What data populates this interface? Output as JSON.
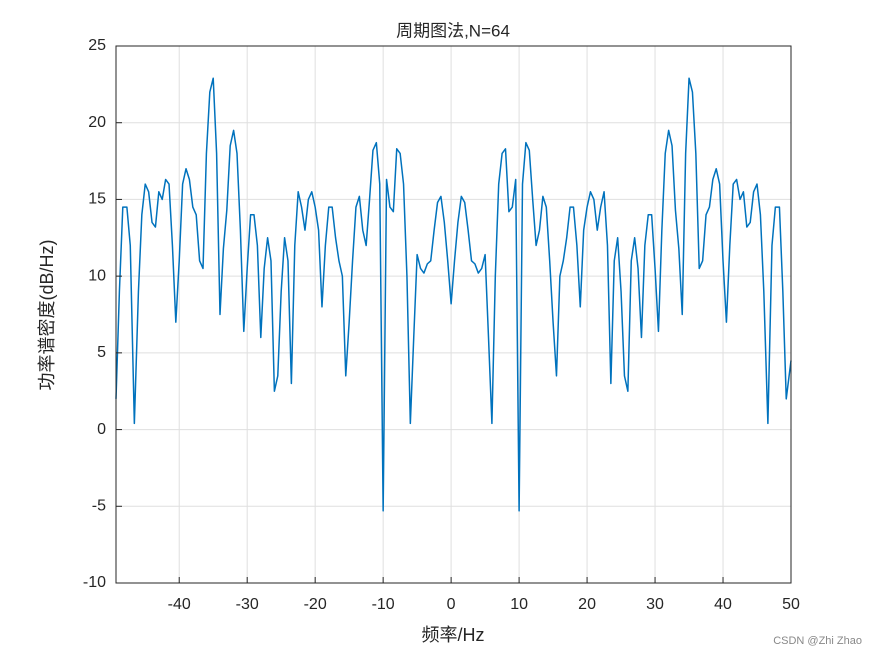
{
  "chart_data": {
    "type": "line",
    "title": "周期图法,N=64",
    "x_label": "频率/Hz",
    "y_label": "功率谱密度(dB/Hz)",
    "watermark": "CSDN @Zhi Zhao",
    "color": "#0072bd",
    "grid": true,
    "xlim": [
      -49.3,
      50
    ],
    "ylim": [
      -10,
      25
    ],
    "xticks": [
      -40,
      -30,
      -20,
      -10,
      0,
      10,
      20,
      30,
      40,
      50
    ],
    "yticks": [
      -10,
      -5,
      0,
      5,
      10,
      15,
      20,
      25
    ],
    "x": [
      -49.3,
      -48.8,
      -48.3,
      -47.7,
      -47.2,
      -46.6,
      -46,
      -45.5,
      -45,
      -44.5,
      -44,
      -43.5,
      -43,
      -42.5,
      -42,
      -41.5,
      -41,
      -40.5,
      -40,
      -39.5,
      -39,
      -38.5,
      -38,
      -37.5,
      -37,
      -36.5,
      -36,
      -35.5,
      -35,
      -34.5,
      -34,
      -33.5,
      -33,
      -32.5,
      -32,
      -31.5,
      -31,
      -30.5,
      -30,
      -29.5,
      -29,
      -28.5,
      -28,
      -27.5,
      -27,
      -26.5,
      -26,
      -25.5,
      -25,
      -24.5,
      -24,
      -23.5,
      -23,
      -22.5,
      -22,
      -21.5,
      -21,
      -20.5,
      -20,
      -19.5,
      -19,
      -18.5,
      -18,
      -17.5,
      -17,
      -16.5,
      -16,
      -15.5,
      -15,
      -14.5,
      -14,
      -13.5,
      -13,
      -12.5,
      -12,
      -11.5,
      -11,
      -10.5,
      -10,
      -9.5,
      -9,
      -8.5,
      -8,
      -7.5,
      -7,
      -6.5,
      -6,
      -5.5,
      -5,
      -4.5,
      -4,
      -3.5,
      -3,
      -2.5,
      -2,
      -1.5,
      -1,
      -0.5,
      0,
      0.5,
      1,
      1.5,
      2,
      2.5,
      3,
      3.5,
      4,
      4.5,
      5,
      5.5,
      6,
      6.5,
      7,
      7.5,
      8,
      8.5,
      9,
      9.5,
      10,
      10.5,
      11,
      11.5,
      12,
      12.5,
      13,
      13.5,
      14,
      14.5,
      15,
      15.5,
      16,
      16.5,
      17,
      17.5,
      18,
      18.5,
      19,
      19.5,
      20,
      20.5,
      21,
      21.5,
      22,
      22.5,
      23,
      23.5,
      24,
      24.5,
      25,
      25.5,
      26,
      26.5,
      27,
      27.5,
      28,
      28.5,
      29,
      29.5,
      30,
      30.5,
      31,
      31.5,
      32,
      32.5,
      33,
      33.5,
      34,
      34.5,
      35,
      35.5,
      36,
      36.5,
      37,
      37.5,
      38,
      38.5,
      39,
      39.5,
      40,
      40.5,
      41,
      41.5,
      42,
      42.5,
      43,
      43.5,
      44,
      44.5,
      45,
      45.5,
      46,
      46.6,
      47.2,
      47.7,
      48.3,
      48.8,
      49.3,
      50
    ],
    "values": [
      2,
      9,
      14.5,
      14.5,
      12,
      0.4,
      9,
      14,
      16,
      15.5,
      13.5,
      13.2,
      15.5,
      15,
      16.3,
      16,
      12,
      7,
      11,
      16,
      17,
      16.3,
      14.5,
      14,
      11,
      10.5,
      18,
      22,
      22.9,
      18,
      7.5,
      11.8,
      14.3,
      18.5,
      19.5,
      18,
      13,
      6.4,
      10.5,
      14,
      14,
      12,
      6,
      10.5,
      12.5,
      11,
      2.5,
      3.5,
      9,
      12.5,
      11,
      3,
      12,
      15.5,
      14.5,
      13,
      15,
      15.5,
      14.5,
      13,
      8,
      12,
      14.5,
      14.5,
      12.5,
      11,
      10,
      3.5,
      7,
      11,
      14.5,
      15.2,
      13,
      12,
      15,
      18.2,
      18.7,
      16,
      -5.3,
      16.3,
      14.5,
      14.2,
      18.3,
      18,
      16,
      10,
      0.4,
      6,
      11.4,
      10.5,
      10.2,
      10.8,
      11,
      13,
      14.8,
      15.2,
      13.5,
      11,
      8.2,
      11,
      13.5,
      15.2,
      14.8,
      13,
      11,
      10.8,
      10.2,
      10.5,
      11.4,
      6,
      0.4,
      10,
      16,
      18,
      18.3,
      14.2,
      14.5,
      16.3,
      -5.3,
      16,
      18.7,
      18.2,
      15,
      12,
      13,
      15.2,
      14.5,
      11,
      7,
      3.5,
      10,
      11,
      12.5,
      14.5,
      14.5,
      12,
      8,
      13,
      14.5,
      15.5,
      15,
      13,
      14.5,
      15.5,
      12,
      3,
      11,
      12.5,
      9,
      3.5,
      2.5,
      11,
      12.5,
      10.5,
      6,
      12,
      14,
      14,
      10.5,
      6.4,
      13,
      18,
      19.5,
      18.5,
      14.3,
      11.8,
      7.5,
      18,
      22.9,
      22,
      18,
      10.5,
      11,
      14,
      14.5,
      16.3,
      17,
      16,
      11,
      7,
      12,
      16,
      16.3,
      15,
      15.5,
      13.2,
      13.5,
      15.5,
      16,
      14,
      9,
      0.4,
      12,
      14.5,
      14.5,
      9,
      2,
      4.5
    ]
  }
}
